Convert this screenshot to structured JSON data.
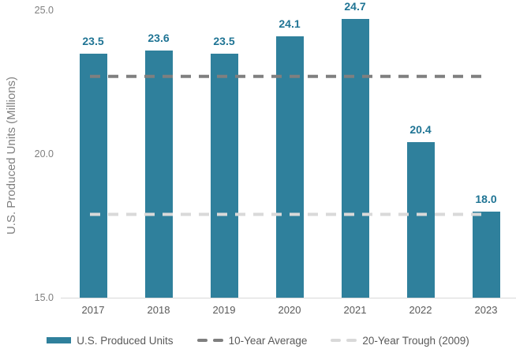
{
  "chart_data": {
    "type": "bar",
    "title": "",
    "xlabel": "",
    "ylabel": "U.S. Produced Units (Millions)",
    "categories": [
      "2017",
      "2018",
      "2019",
      "2020",
      "2021",
      "2022",
      "2023"
    ],
    "series": [
      {
        "name": "U.S. Produced Units",
        "values": [
          23.5,
          23.6,
          23.5,
          24.1,
          24.7,
          20.4,
          18.0
        ],
        "color": "#2f809c"
      }
    ],
    "value_labels": [
      "23.5",
      "23.6",
      "23.5",
      "24.1",
      "24.7",
      "20.4",
      "18.0"
    ],
    "ylim": [
      15.0,
      25.0
    ],
    "y_ticks": [
      {
        "value": 25.0,
        "label": "25.0"
      },
      {
        "value": 20.0,
        "label": "20.0"
      },
      {
        "value": 15.0,
        "label": "15.0"
      }
    ],
    "grid": false,
    "reference_lines": [
      {
        "name": "10-Year Average",
        "value": 22.7,
        "style": "dashed",
        "color": "#7f7f7f"
      },
      {
        "name": "20-Year Trough (2009)",
        "value": 17.9,
        "style": "dashed",
        "color": "#d9d9d9"
      }
    ],
    "legend_position": "bottom",
    "legend": [
      {
        "label": "U.S. Produced Units",
        "swatch": "bar",
        "color": "#2f809c"
      },
      {
        "label": "10-Year Average",
        "swatch": "dash",
        "color": "#7f7f7f"
      },
      {
        "label": "20-Year Trough (2009)",
        "swatch": "dash",
        "color": "#d9d9d9"
      }
    ]
  },
  "colors": {
    "bar_fill": "#2f809c",
    "value_label_text": "#1f7494",
    "axis_text": "#7f7f7f",
    "category_text": "#595959",
    "legend_text": "#595959",
    "baseline": "#d9d9d9",
    "avg_line": "#7f7f7f",
    "trough_line": "#d9d9d9"
  }
}
